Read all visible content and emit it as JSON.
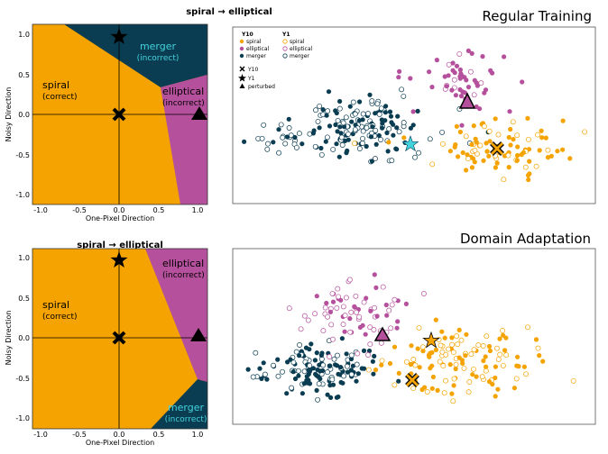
{
  "colors": {
    "spiral": "#f5a300",
    "elliptical": "#b5509c",
    "merger": "#0a3d52",
    "merger_label": "#43d3dd",
    "frame": "#555555"
  },
  "icons": {
    "y10": "x-marker-icon",
    "y1": "star-marker-icon",
    "perturbed": "triangle-marker-icon"
  },
  "figure": {
    "panels": [
      {
        "id": "regular",
        "title": "Regular Training",
        "boundary": {
          "header": "spiral → elliptical",
          "xlabel": "One-Pixel Direction",
          "ylabel": "Noisy Direction",
          "xlim": [
            -1.15,
            1.15
          ],
          "ylim": [
            -1.1,
            1.1
          ],
          "xticks": [
            "-1.0",
            "-0.5",
            "0.0",
            "0.5",
            "1.0"
          ],
          "yticks": [
            "1.0",
            "0.5",
            "0.0",
            "-0.5",
            "-1.0"
          ],
          "regions": [
            {
              "class": "spiral",
              "label": "spiral",
              "sublabel": "(correct)"
            },
            {
              "class": "merger",
              "label": "merger",
              "sublabel": "(incorrect)"
            },
            {
              "class": "elliptical",
              "label": "elliptical",
              "sublabel": "(incorrect)"
            }
          ],
          "points": [
            {
              "kind": "star",
              "x": 0.0,
              "y": 0.95
            },
            {
              "kind": "x",
              "x": 0.0,
              "y": 0.0
            },
            {
              "kind": "triangle",
              "x": 1.05,
              "y": 0.03
            }
          ]
        },
        "scatter": {
          "legend_y10_header": "Y10",
          "legend_y1_header": "Y1",
          "legend_items": [
            {
              "class": "spiral",
              "y10": "spiral",
              "y1": "spiral"
            },
            {
              "class": "elliptical",
              "y10": "elliptical",
              "y1": "elliptical"
            },
            {
              "class": "merger",
              "y10": "merger",
              "y1": "merger"
            }
          ],
          "marker_items": [
            {
              "kind": "x",
              "label": "Y10"
            },
            {
              "kind": "star",
              "label": "Y1"
            },
            {
              "kind": "triangle",
              "label": "perturbed"
            }
          ]
        }
      },
      {
        "id": "domain",
        "title": "Domain Adaptation",
        "boundary": {
          "header": "spiral → elliptical",
          "xlabel": "One-Pixel Direction",
          "ylabel": "Noisy Direction",
          "xlim": [
            -1.15,
            1.15
          ],
          "ylim": [
            -1.1,
            1.1
          ],
          "xticks": [
            "-1.0",
            "-0.5",
            "0.0",
            "0.5",
            "1.0"
          ],
          "yticks": [
            "1.0",
            "0.5",
            "0.0",
            "-0.5",
            "-1.0"
          ],
          "regions": [
            {
              "class": "spiral",
              "label": "spiral",
              "sublabel": "(correct)"
            },
            {
              "class": "elliptical",
              "label": "elliptical",
              "sublabel": "(incorrect)"
            },
            {
              "class": "merger",
              "label": "merger",
              "sublabel": "(incorrect)"
            }
          ],
          "points": [
            {
              "kind": "star",
              "x": 0.0,
              "y": 0.95
            },
            {
              "kind": "x",
              "x": 0.0,
              "y": 0.0
            },
            {
              "kind": "triangle",
              "x": 1.05,
              "y": 0.03
            }
          ]
        },
        "scatter": {}
      }
    ]
  }
}
